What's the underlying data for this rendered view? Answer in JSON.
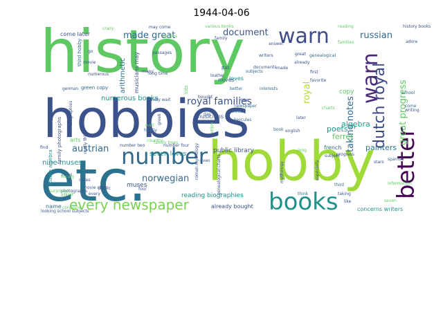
{
  "chart_data": {
    "type": "wordcloud",
    "title": "1944-04-06",
    "words": [
      {
        "text": "history",
        "weight": 100,
        "color": "#5ec962"
      },
      {
        "text": "hobbies",
        "weight": 95,
        "color": "#3b528b"
      },
      {
        "text": "etc.",
        "weight": 92,
        "color": "#2c728e"
      },
      {
        "text": "hobby",
        "weight": 90,
        "color": "#a0da39"
      },
      {
        "text": "number",
        "weight": 48,
        "color": "#31688e"
      },
      {
        "text": "books",
        "weight": 44,
        "color": "#21918c"
      },
      {
        "text": "warn",
        "weight": 42,
        "color": "#3e4a89"
      },
      {
        "text": "better",
        "weight": 38,
        "color": "#440154"
      },
      {
        "text": "warn",
        "weight": 36,
        "color": "#482878"
      },
      {
        "text": "every newspaper",
        "weight": 28,
        "color": "#7ad151"
      },
      {
        "text": "dutch royal",
        "weight": 26,
        "color": "#3e4989"
      },
      {
        "text": "royal families",
        "weight": 20,
        "color": "#3b528b"
      },
      {
        "text": "made great",
        "weight": 18,
        "color": "#31688e"
      },
      {
        "text": "document",
        "weight": 18,
        "color": "#3b528b"
      },
      {
        "text": "russian",
        "weight": 18,
        "color": "#31688e"
      },
      {
        "text": "taking notes",
        "weight": 18,
        "color": "#31688e"
      },
      {
        "text": "great progress",
        "weight": 18,
        "color": "#5ec962"
      },
      {
        "text": "austrian",
        "weight": 16,
        "color": "#31688e"
      },
      {
        "text": "norwegian",
        "weight": 16,
        "color": "#31688e"
      },
      {
        "text": "royal",
        "weight": 16,
        "color": "#b5de2b"
      },
      {
        "text": "algebra",
        "weight": 12,
        "color": "#1fa187"
      },
      {
        "text": "ferret",
        "weight": 12,
        "color": "#5ec962"
      },
      {
        "text": "poets",
        "weight": 12,
        "color": "#21918c"
      },
      {
        "text": "painters",
        "weight": 12,
        "color": "#2c728e"
      },
      {
        "text": "numerous books",
        "weight": 11,
        "color": "#21918c"
      },
      {
        "text": "arithmetic",
        "weight": 11,
        "color": "#2c728e"
      },
      {
        "text": "nine muses",
        "weight": 11,
        "color": "#21918c"
      },
      {
        "text": "seven loves",
        "weight": 11,
        "color": "#21918c"
      },
      {
        "text": "public library",
        "weight": 11,
        "color": "#3b528b"
      },
      {
        "text": "reading biographies",
        "weight": 11,
        "color": "#21918c"
      },
      {
        "text": "muses",
        "weight": 11,
        "color": "#3b528b"
      },
      {
        "text": "copy",
        "weight": 11,
        "color": "#5ec962"
      },
      {
        "text": "musicians",
        "weight": 10,
        "color": "#3b528b"
      },
      {
        "text": "mives",
        "weight": 10,
        "color": "#31688e"
      },
      {
        "text": "loves",
        "weight": 10,
        "color": "#21918c"
      },
      {
        "text": "come later",
        "weight": 10,
        "color": "#3b528b"
      },
      {
        "text": "loathe algebra",
        "weight": 9,
        "color": "#21918c"
      },
      {
        "text": "family photographs",
        "weight": 9,
        "color": "#3b528b"
      },
      {
        "text": "third hobby",
        "weight": 9,
        "color": "#31688e"
      },
      {
        "text": "musicians may",
        "weight": 9,
        "color": "#3b528b"
      },
      {
        "text": "name",
        "weight": 9,
        "color": "#31688e"
      },
      {
        "text": "already bought",
        "weight": 9,
        "color": "#3b528b"
      },
      {
        "text": "concerns writers",
        "weight": 9,
        "color": "#21918c"
      },
      {
        "text": "french",
        "weight": 9,
        "color": "#31688e"
      },
      {
        "text": "arts",
        "weight": 9,
        "color": "#5ec962"
      },
      {
        "text": "pat",
        "weight": 9,
        "color": "#3b528b"
      },
      {
        "text": "third",
        "weight": 8,
        "color": "#31688e"
      },
      {
        "text": "newspaper",
        "weight": 8,
        "color": "#31688e"
      },
      {
        "text": "lots",
        "weight": 8,
        "color": "#5ec962"
      },
      {
        "text": "green copy",
        "weight": 8,
        "color": "#31688e"
      },
      {
        "text": "hardly wait",
        "weight": 8,
        "color": "#3b528b"
      },
      {
        "text": "bought",
        "weight": 8,
        "color": "#3b528b"
      },
      {
        "text": "genealogical",
        "weight": 8,
        "color": "#31688e"
      },
      {
        "text": "first",
        "weight": 8,
        "color": "#3b528b"
      },
      {
        "text": "favorite",
        "weight": 8,
        "color": "#3b528b"
      },
      {
        "text": "families",
        "weight": 8,
        "color": "#5ec962"
      },
      {
        "text": "english",
        "weight": 7,
        "color": "#3b528b"
      },
      {
        "text": "hercules",
        "weight": 7,
        "color": "#31688e"
      },
      {
        "text": "trees",
        "weight": 7,
        "color": "#31688e"
      },
      {
        "text": "book",
        "weight": 7,
        "color": "#31688e"
      },
      {
        "text": "think",
        "weight": 7,
        "color": "#31688e"
      },
      {
        "text": "like",
        "weight": 7,
        "color": "#3b528b"
      },
      {
        "text": "taking",
        "weight": 7,
        "color": "#3b528b"
      },
      {
        "text": "information",
        "weight": 7,
        "color": "#5ec962"
      },
      {
        "text": "seven",
        "weight": 7,
        "color": "#5ec962"
      },
      {
        "text": "spanish",
        "weight": 6,
        "color": "#31688e"
      },
      {
        "text": "stars",
        "weight": 6,
        "color": "#3b528b"
      },
      {
        "text": "come",
        "weight": 6,
        "color": "#31688e"
      },
      {
        "text": "writing",
        "weight": 6,
        "color": "#3b528b"
      },
      {
        "text": "school",
        "weight": 6,
        "color": "#31688e"
      },
      {
        "text": "adore",
        "weight": 6,
        "color": "#3b528b"
      },
      {
        "text": "reading",
        "weight": 6,
        "color": "#5ec962"
      },
      {
        "text": "history books",
        "weight": 6,
        "color": "#3b528b"
      },
      {
        "text": "may come",
        "weight": 6,
        "color": "#3b528b"
      },
      {
        "text": "various books",
        "weight": 6,
        "color": "#5ec962"
      },
      {
        "text": "family",
        "weight": 6,
        "color": "#3b528b"
      },
      {
        "text": "passages",
        "weight": 6,
        "color": "#3b528b"
      },
      {
        "text": "numerous",
        "weight": 6,
        "color": "#3b528b"
      },
      {
        "text": "many",
        "weight": 6,
        "color": "#3b528b"
      },
      {
        "text": "hardly",
        "weight": 6,
        "color": "#31688e"
      },
      {
        "text": "loathe",
        "weight": 6,
        "color": "#3b528b"
      },
      {
        "text": "better",
        "weight": 6,
        "color": "#31688e"
      },
      {
        "text": "interests",
        "weight": 6,
        "color": "#31688e"
      },
      {
        "text": "subjects",
        "weight": 6,
        "color": "#31688e"
      },
      {
        "text": "made",
        "weight": 6,
        "color": "#3b528b"
      },
      {
        "text": "already",
        "weight": 6,
        "color": "#3b528b"
      },
      {
        "text": "answer",
        "weight": 6,
        "color": "#3b528b"
      },
      {
        "text": "great",
        "weight": 6,
        "color": "#3b528b"
      },
      {
        "text": "later",
        "weight": 6,
        "color": "#3b528b"
      },
      {
        "text": "wait",
        "weight": 6,
        "color": "#5ec962"
      },
      {
        "text": "even",
        "weight": 6,
        "color": "#3b528b"
      },
      {
        "text": "day",
        "weight": 6,
        "color": "#31688e"
      },
      {
        "text": "enjoy",
        "weight": 6,
        "color": "#5ec962"
      },
      {
        "text": "greek",
        "weight": 6,
        "color": "#3b528b"
      },
      {
        "text": "roman mythology",
        "weight": 5,
        "color": "#3b528b"
      },
      {
        "text": "genealogical charts",
        "weight": 5,
        "color": "#3b528b"
      },
      {
        "text": "mythology",
        "weight": 5,
        "color": "#3b528b"
      },
      {
        "text": "especially",
        "weight": 5,
        "color": "#3b528b"
      },
      {
        "text": "progress",
        "weight": 5,
        "color": "#3b528b"
      },
      {
        "text": "subject",
        "weight": 5,
        "color": "#3b528b"
      },
      {
        "text": "charts",
        "weight": 5,
        "color": "#5ec962"
      },
      {
        "text": "family trees",
        "weight": 5,
        "color": "#5ec962"
      },
      {
        "text": "number four",
        "weight": 5,
        "color": "#3b528b"
      },
      {
        "text": "number two",
        "weight": 5,
        "color": "#3b528b"
      },
      {
        "text": "really think",
        "weight": 5,
        "color": "#3b528b"
      },
      {
        "text": "photographs",
        "weight": 5,
        "color": "#3b528b"
      },
      {
        "text": "looking school subjects",
        "weight": 5,
        "color": "#3b528b"
      },
      {
        "text": "movie stars",
        "weight": 5,
        "color": "#3b528b"
      },
      {
        "text": "surprised",
        "weight": 5,
        "color": "#5ec962"
      },
      {
        "text": "asked",
        "weight": 5,
        "color": "#5ec962"
      },
      {
        "text": "public",
        "weight": 5,
        "color": "#3b528b"
      },
      {
        "text": "notes",
        "weight": 5,
        "color": "#3b528b"
      },
      {
        "text": "need",
        "weight": 5,
        "color": "#3b528b"
      },
      {
        "text": "four",
        "weight": 5,
        "color": "#3b528b"
      },
      {
        "text": "every",
        "weight": 5,
        "color": "#3b528b"
      },
      {
        "text": "find",
        "weight": 5,
        "color": "#3b528b"
      },
      {
        "text": "go",
        "weight": 5,
        "color": "#3b528b"
      },
      {
        "text": "library",
        "weight": 5,
        "color": "#5ec962"
      },
      {
        "text": "crazy",
        "weight": 5,
        "color": "#5ec962"
      },
      {
        "text": "movie",
        "weight": 5,
        "color": "#3b528b"
      },
      {
        "text": "concerns",
        "weight": 5,
        "color": "#5ec962"
      },
      {
        "text": "biographies",
        "weight": 5,
        "color": "#3b528b"
      },
      {
        "text": "german",
        "weight": 5,
        "color": "#3b528b"
      },
      {
        "text": "long time",
        "weight": 5,
        "color": "#3b528b"
      },
      {
        "text": "writers",
        "weight": 5,
        "color": "#3b528b"
      },
      {
        "text": "various",
        "weight": 5,
        "color": "#5ec962"
      },
      {
        "text": "documents",
        "weight": 5,
        "color": "#3b528b"
      },
      {
        "text": "long",
        "weight": 5,
        "color": "#5ec962"
      },
      {
        "text": "country",
        "weight": 5,
        "color": "#5ec962"
      },
      {
        "text": "may",
        "weight": 5,
        "color": "#3b528b"
      },
      {
        "text": "name",
        "weight": 5,
        "color": "#3b528b"
      }
    ]
  }
}
